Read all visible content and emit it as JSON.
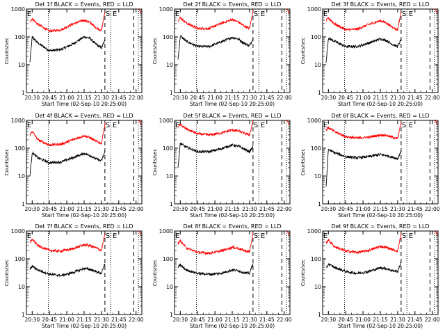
{
  "figure": {
    "x_tick_labels": [
      "20:30",
      "20:45",
      "21:00",
      "21:15",
      "21:30",
      "21:45",
      "22:00"
    ],
    "x_axis_label": "Start Time (02-Sep-10 20:25:00)",
    "y_axis_label": "Counts/sec",
    "y_tick_labels": [
      "1",
      "10",
      "100",
      "1000"
    ],
    "marker_start": "S",
    "marker_end": "E",
    "marker_left": "E",
    "colors": {
      "events": "#000000",
      "lld": "#ff0000",
      "background": "#ffffff"
    }
  },
  "chart_data": [
    {
      "type": "line",
      "title": "Det 1f BLACK = Events, RED = LLD",
      "xlabel": "Start Time (02-Sep-10 20:25:00)",
      "ylabel": "Counts/sec",
      "x_range": [
        "20:25",
        "22:05"
      ],
      "ylim": [
        1,
        1000
      ],
      "yscale": "log",
      "grid": false,
      "x": [
        "20:28",
        "20:30",
        "20:35",
        "20:45",
        "20:55",
        "21:05",
        "21:15",
        "21:20",
        "21:25",
        "21:30",
        "21:33"
      ],
      "series": [
        {
          "name": "Events",
          "color": "#000000",
          "values": [
            12,
            100,
            60,
            32,
            35,
            55,
            100,
            90,
            55,
            40,
            75
          ]
        },
        {
          "name": "LLD",
          "color": "#ff0000",
          "values": [
            350,
            450,
            280,
            160,
            180,
            290,
            400,
            330,
            220,
            170,
            800
          ]
        }
      ],
      "markers": {
        "S": "21:33",
        "dotted": [
          "20:44",
          "21:38",
          "22:02"
        ],
        "dashed": [
          "21:33",
          "21:58"
        ]
      }
    },
    {
      "type": "line",
      "title": "Det 2f BLACK = Events, RED = LLD",
      "xlabel": "Start Time (02-Sep-10 20:25:00)",
      "ylabel": "Counts/sec",
      "x_range": [
        "20:25",
        "22:05"
      ],
      "ylim": [
        1,
        1000
      ],
      "yscale": "log",
      "grid": false,
      "x": [
        "20:28",
        "20:30",
        "20:35",
        "20:45",
        "20:55",
        "21:05",
        "21:15",
        "21:20",
        "21:25",
        "21:30",
        "21:33"
      ],
      "series": [
        {
          "name": "Events",
          "color": "#000000",
          "values": [
            15,
            110,
            70,
            45,
            45,
            65,
            95,
            85,
            60,
            48,
            85
          ]
        },
        {
          "name": "LLD",
          "color": "#ff0000",
          "values": [
            380,
            500,
            320,
            200,
            200,
            300,
            420,
            350,
            250,
            200,
            850
          ]
        }
      ],
      "markers": {
        "S": "21:33",
        "dotted": [
          "20:44",
          "21:38",
          "22:02"
        ],
        "dashed": [
          "21:33",
          "21:58"
        ]
      }
    },
    {
      "type": "line",
      "title": "Det 3f BLACK = Events, RED = LLD",
      "xlabel": "Start Time (02-Sep-10 20:25:00)",
      "ylabel": "Counts/sec",
      "x_range": [
        "20:25",
        "22:05"
      ],
      "ylim": [
        1,
        1000
      ],
      "yscale": "log",
      "grid": false,
      "x": [
        "20:28",
        "20:30",
        "20:35",
        "20:45",
        "20:55",
        "21:05",
        "21:15",
        "21:20",
        "21:25",
        "21:30",
        "21:33"
      ],
      "series": [
        {
          "name": "Events",
          "color": "#000000",
          "values": [
            12,
            90,
            70,
            45,
            45,
            60,
            85,
            75,
            55,
            45,
            80
          ]
        },
        {
          "name": "LLD",
          "color": "#ff0000",
          "values": [
            380,
            480,
            300,
            180,
            190,
            280,
            380,
            320,
            230,
            180,
            820
          ]
        }
      ],
      "markers": {
        "S": "21:33",
        "dotted": [
          "20:44",
          "21:38",
          "22:02"
        ],
        "dashed": [
          "21:33",
          "21:58"
        ]
      }
    },
    {
      "type": "line",
      "title": "Det 4f BLACK = Events, RED = LLD",
      "xlabel": "Start Time (02-Sep-10 20:25:00)",
      "ylabel": "Counts/sec",
      "x_range": [
        "20:25",
        "22:05"
      ],
      "ylim": [
        1,
        1000
      ],
      "yscale": "log",
      "grid": false,
      "x": [
        "20:28",
        "20:30",
        "20:35",
        "20:45",
        "20:55",
        "21:05",
        "21:15",
        "21:20",
        "21:25",
        "21:30",
        "21:33"
      ],
      "series": [
        {
          "name": "Events",
          "color": "#000000",
          "values": [
            10,
            70,
            45,
            30,
            32,
            45,
            65,
            55,
            42,
            35,
            75
          ]
        },
        {
          "name": "LLD",
          "color": "#ff0000",
          "values": [
            300,
            400,
            200,
            130,
            140,
            200,
            280,
            240,
            180,
            150,
            750
          ]
        }
      ],
      "markers": {
        "S": "21:33",
        "dotted": [
          "20:44",
          "21:38",
          "22:02"
        ],
        "dashed": [
          "21:33",
          "21:58"
        ]
      }
    },
    {
      "type": "line",
      "title": "Det 5f BLACK = Events, RED = LLD",
      "xlabel": "Start Time (02-Sep-10 20:25:00)",
      "ylabel": "Counts/sec",
      "x_range": [
        "20:25",
        "22:05"
      ],
      "ylim": [
        1,
        1000
      ],
      "yscale": "log",
      "grid": false,
      "x": [
        "20:28",
        "20:30",
        "20:35",
        "20:45",
        "20:55",
        "21:05",
        "21:15",
        "21:20",
        "21:25",
        "21:30",
        "21:33"
      ],
      "series": [
        {
          "name": "Events",
          "color": "#000000",
          "values": [
            20,
            150,
            110,
            75,
            75,
            95,
            130,
            120,
            95,
            75,
            110
          ]
        },
        {
          "name": "LLD",
          "color": "#ff0000",
          "values": [
            600,
            700,
            500,
            330,
            300,
            350,
            450,
            420,
            350,
            300,
            900
          ]
        }
      ],
      "markers": {
        "S": "21:33",
        "dotted": [
          "20:44",
          "21:38",
          "22:02"
        ],
        "dashed": [
          "21:33",
          "21:58"
        ]
      }
    },
    {
      "type": "line",
      "title": "Det 6f BLACK = Events, RED = LLD",
      "xlabel": "Start Time (02-Sep-10 20:25:00)",
      "ylabel": "Counts/sec",
      "x_range": [
        "20:25",
        "22:05"
      ],
      "ylim": [
        1,
        1000
      ],
      "yscale": "log",
      "grid": false,
      "x": [
        "20:28",
        "20:30",
        "20:35",
        "20:45",
        "20:55",
        "21:05",
        "21:15",
        "21:20",
        "21:25",
        "21:30",
        "21:33"
      ],
      "series": [
        {
          "name": "Events",
          "color": "#000000",
          "values": [
            4,
            90,
            70,
            50,
            45,
            50,
            60,
            55,
            48,
            42,
            80
          ]
        },
        {
          "name": "LLD",
          "color": "#ff0000",
          "values": [
            450,
            550,
            400,
            260,
            230,
            250,
            300,
            290,
            250,
            220,
            850
          ]
        }
      ],
      "markers": {
        "S": "21:33",
        "dotted": [
          "20:44",
          "21:38",
          "22:02"
        ],
        "dashed": [
          "21:33",
          "21:58"
        ]
      }
    },
    {
      "type": "line",
      "title": "Det 7f BLACK = Events, RED = LLD",
      "xlabel": "Start Time (02-Sep-10 20:25:00)",
      "ylabel": "Counts/sec",
      "x_range": [
        "20:25",
        "22:05"
      ],
      "ylim": [
        1,
        1000
      ],
      "yscale": "log",
      "grid": false,
      "x": [
        "20:28",
        "20:30",
        "20:35",
        "20:45",
        "20:55",
        "21:05",
        "21:15",
        "21:20",
        "21:25",
        "21:30",
        "21:33"
      ],
      "series": [
        {
          "name": "Events",
          "color": "#000000",
          "values": [
            40,
            55,
            40,
            28,
            25,
            32,
            45,
            42,
            35,
            30,
            65
          ]
        },
        {
          "name": "LLD",
          "color": "#ff0000",
          "values": [
            400,
            500,
            300,
            200,
            190,
            230,
            320,
            300,
            250,
            200,
            800
          ]
        }
      ],
      "markers": {
        "S": "21:33",
        "dotted": [
          "20:44",
          "21:38",
          "22:02"
        ],
        "dashed": [
          "21:33",
          "21:58"
        ]
      }
    },
    {
      "type": "line",
      "title": "Det 8f BLACK = Events, RED = LLD",
      "xlabel": "Start Time (02-Sep-10 20:25:00)",
      "ylabel": "Counts/sec",
      "x_range": [
        "20:25",
        "22:05"
      ],
      "ylim": [
        1,
        1000
      ],
      "yscale": "log",
      "grid": false,
      "x": [
        "20:28",
        "20:30",
        "20:35",
        "20:45",
        "20:55",
        "21:05",
        "21:15",
        "21:20",
        "21:25",
        "21:30",
        "21:33"
      ],
      "series": [
        {
          "name": "Events",
          "color": "#000000",
          "values": [
            50,
            60,
            40,
            30,
            28,
            30,
            40,
            38,
            32,
            30,
            70
          ]
        },
        {
          "name": "LLD",
          "color": "#ff0000",
          "values": [
            350,
            450,
            250,
            170,
            160,
            190,
            260,
            240,
            200,
            180,
            800
          ]
        }
      ],
      "markers": {
        "S": "21:33",
        "dotted": [
          "20:44",
          "21:38",
          "22:02"
        ],
        "dashed": [
          "21:33",
          "21:58"
        ]
      }
    },
    {
      "type": "line",
      "title": "Det 9f BLACK = Events, RED = LLD",
      "xlabel": "Start Time (02-Sep-10 20:25:00)",
      "ylabel": "Counts/sec",
      "x_range": [
        "20:25",
        "22:05"
      ],
      "ylim": [
        1,
        1000
      ],
      "yscale": "log",
      "grid": false,
      "x": [
        "20:28",
        "20:30",
        "20:35",
        "20:45",
        "20:55",
        "21:05",
        "21:15",
        "21:20",
        "21:25",
        "21:30",
        "21:33"
      ],
      "series": [
        {
          "name": "Events",
          "color": "#000000",
          "values": [
            45,
            65,
            50,
            35,
            30,
            35,
            48,
            45,
            38,
            35,
            75
          ]
        },
        {
          "name": "LLD",
          "color": "#ff0000",
          "values": [
            380,
            480,
            280,
            190,
            170,
            200,
            280,
            260,
            220,
            190,
            800
          ]
        }
      ],
      "markers": {
        "S": "21:33",
        "dotted": [
          "20:44",
          "21:38",
          "22:02"
        ],
        "dashed": [
          "21:33",
          "21:58"
        ]
      }
    }
  ]
}
